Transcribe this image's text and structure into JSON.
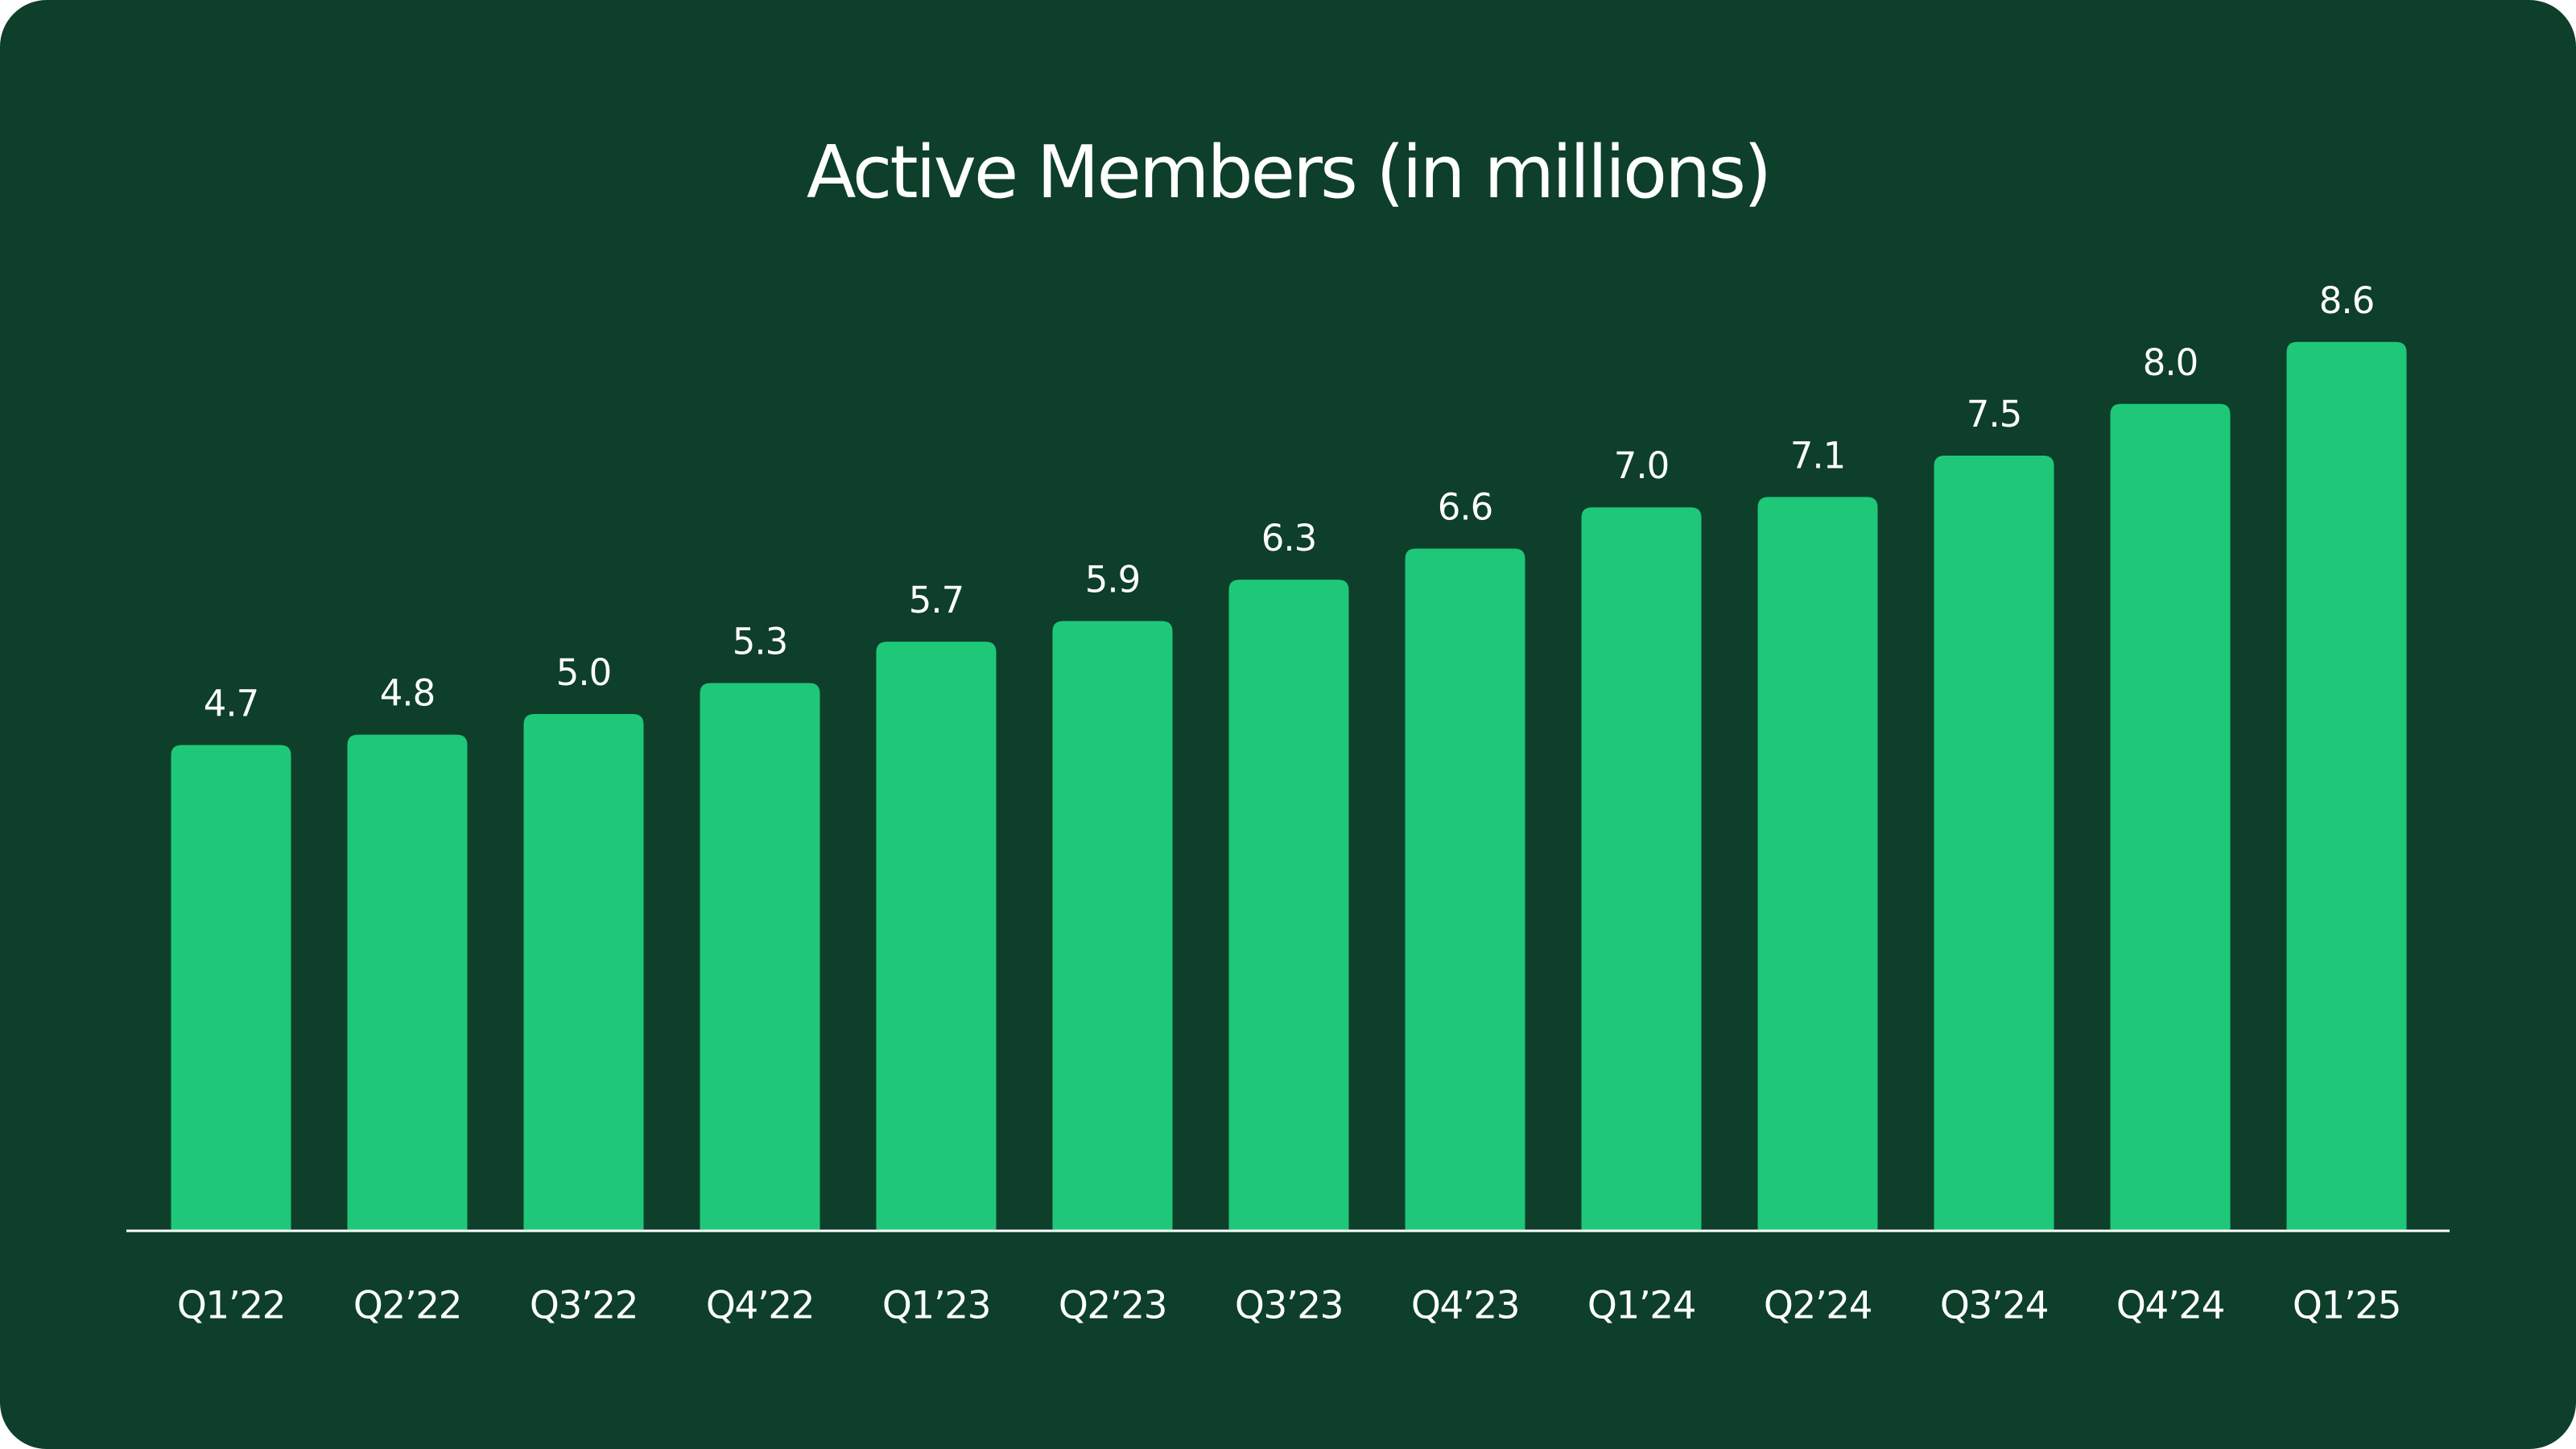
{
  "chart_data": {
    "type": "bar",
    "title": "Active Members (in millions)",
    "categories": [
      "Q1’22",
      "Q2’22",
      "Q3’22",
      "Q4’22",
      "Q1’23",
      "Q2’23",
      "Q3’23",
      "Q4’23",
      "Q1’24",
      "Q2’24",
      "Q3’24",
      "Q4’24",
      "Q1’25"
    ],
    "values": [
      4.7,
      4.8,
      5.0,
      5.3,
      5.7,
      5.9,
      6.3,
      6.6,
      7.0,
      7.1,
      7.5,
      8.0,
      8.6
    ],
    "value_labels": [
      "4.7",
      "4.8",
      "5.0",
      "5.3",
      "5.7",
      "5.9",
      "6.3",
      "6.6",
      "7.0",
      "7.1",
      "7.5",
      "8.0",
      "8.6"
    ],
    "color": "#1ec878",
    "ylim": [
      0,
      10
    ]
  }
}
